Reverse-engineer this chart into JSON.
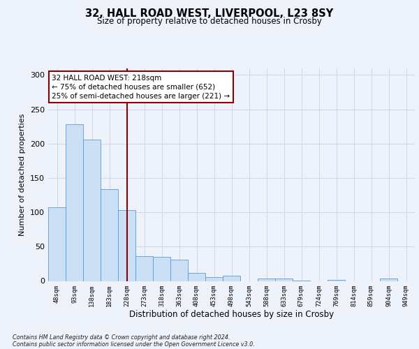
{
  "title_line1": "32, HALL ROAD WEST, LIVERPOOL, L23 8SY",
  "title_line2": "Size of property relative to detached houses in Crosby",
  "xlabel": "Distribution of detached houses by size in Crosby",
  "ylabel": "Number of detached properties",
  "categories": [
    "48sqm",
    "93sqm",
    "138sqm",
    "183sqm",
    "228sqm",
    "273sqm",
    "318sqm",
    "363sqm",
    "408sqm",
    "453sqm",
    "498sqm",
    "543sqm",
    "588sqm",
    "633sqm",
    "679sqm",
    "724sqm",
    "769sqm",
    "814sqm",
    "859sqm",
    "904sqm",
    "949sqm"
  ],
  "values": [
    107,
    228,
    206,
    134,
    103,
    36,
    35,
    31,
    12,
    6,
    8,
    0,
    4,
    4,
    1,
    0,
    2,
    0,
    0,
    4,
    0
  ],
  "bar_color": "#cce0f5",
  "bar_edge_color": "#5b9bd5",
  "grid_color": "#d0d8e8",
  "vline_x": 4,
  "vline_color": "#8b0000",
  "annotation_text": "32 HALL ROAD WEST: 218sqm\n← 75% of detached houses are smaller (652)\n25% of semi-detached houses are larger (221) →",
  "annotation_box_edge": "#8b0000",
  "footer_line1": "Contains HM Land Registry data © Crown copyright and database right 2024.",
  "footer_line2": "Contains public sector information licensed under the Open Government Licence v3.0.",
  "ylim": [
    0,
    310
  ],
  "yticks": [
    0,
    50,
    100,
    150,
    200,
    250,
    300
  ],
  "bg_color": "#eef2fb",
  "plot_bg_color": "#eef2fb"
}
